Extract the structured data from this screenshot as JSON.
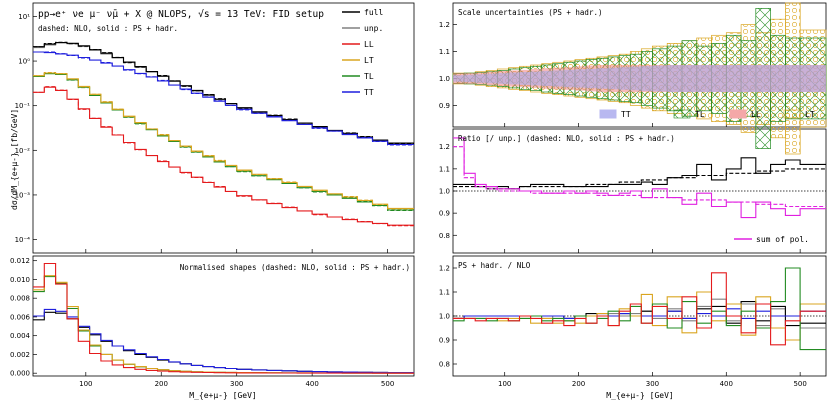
{
  "figure_title": "pp→e⁺ νe μ⁻ ν̄μ + X @ NLOPS, √s = 13 TeV: FID setup",
  "colors": {
    "full": "#000000",
    "unp": "#808080",
    "LL": "#e41a1c",
    "LT": "#daa520",
    "TL": "#228b22",
    "TT": "#1f1fdd",
    "sum": "#e020e0"
  },
  "chart_data": [
    {
      "id": "main",
      "type": "line",
      "note": "dashed: NLO, solid : PS + hadr.",
      "ylabel": "dσ/dM_{e+μ-}  [fb/GeV]",
      "yscale": "log",
      "ylim": [
        5e-05,
        20
      ],
      "xlim": [
        30,
        535
      ],
      "yticks": [
        "10¹",
        "10⁰",
        "10⁻¹",
        "10⁻²",
        "10⁻³",
        "10⁻⁴"
      ],
      "legend": [
        "full",
        "unp.",
        "LL",
        "LT",
        "TL",
        "TT"
      ]
    },
    {
      "id": "shapes",
      "type": "line",
      "title": "Normalised shapes (dashed: NLO, solid : PS + hadr.)",
      "ylim": [
        -0.0003,
        0.0125
      ],
      "xlim": [
        30,
        535
      ],
      "yticks": [
        "0.000",
        "0.002",
        "0.004",
        "0.006",
        "0.008",
        "0.010",
        "0.012"
      ],
      "xticks": [
        "100",
        "200",
        "300",
        "400",
        "500"
      ],
      "xlabel": "M_{e+μ-}  [GeV]"
    },
    {
      "id": "scale",
      "type": "area",
      "title": "Scale uncertainties (PS + hadr.)",
      "ylim": [
        0.82,
        1.28
      ],
      "xlim": [
        30,
        535
      ],
      "yticks": [
        "0.9",
        "1.0",
        "1.1",
        "1.2"
      ],
      "legend": [
        "TT",
        "TL",
        "LL",
        "LT"
      ]
    },
    {
      "id": "ratio",
      "type": "line",
      "title": "Ratio [/ unp.] (dashed: NLO, solid : PS + hadr.)",
      "ylim": [
        0.72,
        1.28
      ],
      "xlim": [
        30,
        535
      ],
      "yticks": [
        "0.8",
        "0.9",
        "1.0",
        "1.1",
        "1.2"
      ],
      "legend": [
        "sum of pol."
      ]
    },
    {
      "id": "pshadr",
      "type": "line",
      "title": "PS + hadr. / NLO",
      "ylim": [
        0.75,
        1.25
      ],
      "xlim": [
        30,
        535
      ],
      "yticks": [
        "0.8",
        "0.9",
        "1.0",
        "1.1",
        "1.2"
      ],
      "xticks": [
        "100",
        "200",
        "300",
        "400",
        "500"
      ],
      "xlabel": "M_{e+μ-}  [GeV]"
    }
  ],
  "series": {
    "full": {
      "lo": [
        2.1,
        2.4,
        2.6,
        2.5,
        2.2,
        1.8,
        1.5,
        1.2,
        0.95,
        0.75,
        0.58,
        0.46,
        0.36,
        0.28,
        0.22,
        0.175,
        0.14,
        0.112,
        0.09,
        0.073,
        0.06,
        0.049,
        0.041,
        0.034,
        0.028,
        0.024,
        0.02,
        0.017,
        0.0145
      ],
      "exp": -1
    },
    "unp": {
      "lo": [
        2.0,
        2.3,
        2.55,
        2.45,
        2.15,
        1.75,
        1.45,
        1.17,
        0.93,
        0.73,
        0.57,
        0.45,
        0.35,
        0.275,
        0.215,
        0.17,
        0.137,
        0.11,
        0.088,
        0.071,
        0.058,
        0.048,
        0.04,
        0.033,
        0.0275,
        0.023,
        0.0195,
        0.0165,
        0.014
      ]
    },
    "TT": {
      "lo": [
        1.6,
        1.55,
        1.45,
        1.35,
        1.2,
        1.05,
        0.9,
        0.77,
        0.64,
        0.53,
        0.44,
        0.36,
        0.29,
        0.235,
        0.19,
        0.155,
        0.126,
        0.102,
        0.083,
        0.068,
        0.056,
        0.046,
        0.038,
        0.032,
        0.027,
        0.0225,
        0.019,
        0.016,
        0.0135
      ]
    },
    "TL": {
      "lo": [
        0.45,
        0.52,
        0.5,
        0.38,
        0.26,
        0.17,
        0.115,
        0.08,
        0.056,
        0.04,
        0.029,
        0.021,
        0.0158,
        0.012,
        0.0092,
        0.0071,
        0.0055,
        0.0043,
        0.0034,
        0.0027,
        0.0022,
        0.0018,
        0.00145,
        0.0012,
        0.001,
        0.00084,
        0.0007,
        0.00058,
        0.00046
      ]
    },
    "LT": {
      "lo": [
        0.47,
        0.54,
        0.52,
        0.4,
        0.27,
        0.18,
        0.12,
        0.083,
        0.058,
        0.042,
        0.03,
        0.022,
        0.0165,
        0.0125,
        0.0096,
        0.0075,
        0.0058,
        0.0046,
        0.0036,
        0.0029,
        0.0023,
        0.0019,
        0.00155,
        0.00128,
        0.00106,
        0.0009,
        0.00075,
        0.00062,
        0.0005
      ]
    },
    "LL": {
      "lo": [
        0.2,
        0.26,
        0.22,
        0.14,
        0.085,
        0.052,
        0.033,
        0.022,
        0.015,
        0.0105,
        0.0076,
        0.0056,
        0.0042,
        0.0032,
        0.0025,
        0.0019,
        0.0015,
        0.0012,
        0.00096,
        0.00078,
        0.00064,
        0.00052,
        0.00044,
        0.00037,
        0.00032,
        0.00028,
        0.00025,
        0.00023,
        0.00021
      ]
    },
    "shapes_TT": [
      0.0061,
      0.0068,
      0.0066,
      0.006,
      0.005,
      0.0042,
      0.0035,
      0.0029,
      0.0025,
      0.0021,
      0.00175,
      0.00146,
      0.0012,
      0.001,
      0.00083,
      0.0007,
      0.0006,
      0.0005,
      0.00042,
      0.00035,
      0.0003,
      0.00025,
      0.0002,
      0.00017,
      0.00014,
      0.00012,
      0.0001,
      8e-05,
      6e-05
    ],
    "shapes_full": [
      0.0057,
      0.0065,
      0.0064,
      0.0058,
      0.0049,
      0.0041,
      0.0034,
      0.0029,
      0.0024,
      0.002,
      0.0017,
      0.0014,
      0.00118,
      0.001,
      0.00083,
      0.0007,
      0.0006,
      0.0005,
      0.00042,
      0.00035,
      0.0003,
      0.00025,
      0.0002,
      0.00017,
      0.00014,
      0.00012,
      0.0001,
      8e-05,
      6e-05
    ],
    "shapes_TL": [
      0.0087,
      0.0103,
      0.0096,
      0.0069,
      0.0045,
      0.0029,
      0.002,
      0.0014,
      0.00095,
      0.00068,
      0.0005,
      0.00037,
      0.00027,
      0.0002,
      0.00015,
      0.00012,
      0.0001,
      8e-05,
      6e-05,
      5e-05,
      4e-05,
      3e-05,
      3e-05,
      2e-05,
      2e-05,
      1e-05,
      1e-05,
      1e-05,
      1e-05
    ],
    "shapes_LT": [
      0.0089,
      0.0104,
      0.0097,
      0.0071,
      0.0046,
      0.003,
      0.002,
      0.0014,
      0.00096,
      0.0007,
      0.0005,
      0.00037,
      0.00027,
      0.0002,
      0.00015,
      0.00012,
      0.0001,
      8e-05,
      6e-05,
      5e-05,
      4e-05,
      3e-05,
      3e-05,
      2e-05,
      2e-05,
      1e-05,
      1e-05,
      1e-05,
      1e-05
    ],
    "shapes_LL": [
      0.0092,
      0.0117,
      0.0095,
      0.0058,
      0.0034,
      0.0021,
      0.0013,
      0.00088,
      0.0006,
      0.00042,
      0.0003,
      0.00022,
      0.00016,
      0.00012,
      9e-05,
      7e-05,
      5e-05,
      4e-05,
      3e-05,
      3e-05,
      2e-05,
      2e-05,
      1e-05,
      1e-05,
      1e-05,
      1e-05,
      1e-05,
      0.0,
      0.0
    ],
    "ratio_full": [
      1.03,
      1.03,
      1.02,
      1.02,
      1.02,
      1.01,
      1.02,
      1.03,
      1.03,
      1.03,
      1.02,
      1.02,
      1.02,
      1.02,
      1.03,
      1.03,
      1.03,
      1.04,
      1.03,
      1.06,
      1.07,
      1.12,
      1.05,
      1.1,
      1.15,
      1.08,
      1.12,
      1.14,
      1.12
    ],
    "ratio_full_nlo": [
      1.02,
      1.02,
      1.02,
      1.01,
      1.01,
      1.01,
      1.02,
      1.02,
      1.02,
      1.02,
      1.02,
      1.02,
      1.03,
      1.03,
      1.03,
      1.04,
      1.04,
      1.05,
      1.05,
      1.06,
      1.06,
      1.07,
      1.07,
      1.08,
      1.08,
      1.09,
      1.09,
      1.1,
      1.1
    ],
    "ratio_sum": [
      1.24,
      1.08,
      1.03,
      1.02,
      1.01,
      1.01,
      1.0,
      1.0,
      0.99,
      0.99,
      1.0,
      0.99,
      1.0,
      0.99,
      0.98,
      0.99,
      1.0,
      0.97,
      1.01,
      0.97,
      0.94,
      0.99,
      0.93,
      0.95,
      0.88,
      0.95,
      0.92,
      0.89,
      0.92
    ],
    "ratio_sum_nlo": [
      1.2,
      1.06,
      1.02,
      1.01,
      1.0,
      1.0,
      1.0,
      0.99,
      0.99,
      0.99,
      0.99,
      0.99,
      0.99,
      0.98,
      0.98,
      0.98,
      0.98,
      0.97,
      0.97,
      0.97,
      0.96,
      0.96,
      0.96,
      0.95,
      0.95,
      0.94,
      0.94,
      0.93,
      0.93
    ],
    "psh_LL": [
      0.99,
      0.99,
      0.98,
      0.99,
      0.99,
      0.98,
      1.0,
      0.99,
      0.97,
      0.98,
      0.96,
      0.99,
      0.97,
      1.0,
      0.96,
      1.02,
      1.05,
      0.97,
      1.04,
      0.99,
      1.08,
      0.95,
      1.18,
      1.0,
      0.93,
      1.05,
      0.88,
      0.98,
      1.02
    ],
    "psh_LT": [
      0.99,
      0.99,
      0.99,
      0.99,
      0.98,
      0.99,
      0.99,
      0.97,
      0.99,
      0.97,
      0.98,
      0.97,
      1.0,
      1.01,
      0.96,
      1.03,
      1.0,
      1.09,
      0.96,
      1.08,
      0.93,
      1.1,
      0.98,
      1.05,
      0.92,
      1.08,
      0.95,
      0.9,
      1.05
    ],
    "psh_TL": [
      0.98,
      0.99,
      0.99,
      0.98,
      0.99,
      0.98,
      0.99,
      1.0,
      0.98,
      0.99,
      0.98,
      1.0,
      0.97,
      0.99,
      1.02,
      0.98,
      1.04,
      0.97,
      1.05,
      0.95,
      1.06,
      0.97,
      1.02,
      0.96,
      1.02,
      0.95,
      1.06,
      1.2,
      0.86
    ],
    "psh_TT": [
      0.99,
      1.0,
      1.0,
      1.0,
      1.0,
      1.0,
      1.0,
      1.0,
      1.0,
      1.0,
      0.99,
      1.0,
      1.0,
      1.01,
      1.0,
      1.01,
      1.0,
      1.0,
      1.0,
      1.02,
      0.99,
      1.01,
      1.0,
      1.03,
      0.99,
      1.02,
      1.0,
      1.0,
      1.02
    ],
    "psh_unp": [
      0.99,
      1.0,
      1.0,
      1.0,
      1.0,
      1.0,
      1.0,
      1.0,
      0.99,
      1.0,
      0.99,
      1.0,
      1.0,
      1.0,
      1.01,
      1.0,
      1.01,
      1.02,
      0.99,
      1.03,
      0.98,
      1.04,
      1.07,
      0.98,
      1.05,
      0.96,
      1.03,
      1.0,
      0.95
    ],
    "psh_full": [
      0.99,
      1.0,
      1.0,
      1.0,
      1.0,
      1.0,
      1.0,
      1.0,
      1.0,
      1.0,
      0.99,
      1.0,
      1.01,
      1.0,
      1.0,
      1.01,
      1.0,
      1.02,
      1.0,
      1.02,
      0.99,
      1.03,
      1.04,
      0.97,
      1.06,
      0.98,
      1.04,
      0.96,
      0.97
    ],
    "scale_LT": [
      0.02,
      0.02,
      0.025,
      0.03,
      0.035,
      0.04,
      0.045,
      0.05,
      0.055,
      0.06,
      0.065,
      0.07,
      0.075,
      0.08,
      0.085,
      0.09,
      0.1,
      0.11,
      0.12,
      0.13,
      0.14,
      0.15,
      0.16,
      0.17,
      0.2,
      0.17,
      0.22,
      0.28,
      0.18
    ],
    "scale_TL": [
      0.018,
      0.02,
      0.022,
      0.025,
      0.03,
      0.035,
      0.04,
      0.045,
      0.05,
      0.055,
      0.06,
      0.065,
      0.07,
      0.075,
      0.08,
      0.085,
      0.09,
      0.1,
      0.11,
      0.12,
      0.14,
      0.12,
      0.13,
      0.16,
      0.14,
      0.26,
      0.16,
      0.15,
      0.15
    ],
    "scale_LL": [
      0.02,
      0.02,
      0.022,
      0.025,
      0.028,
      0.03,
      0.032,
      0.035,
      0.038,
      0.04,
      0.042,
      0.045,
      0.048,
      0.05,
      0.05,
      0.05,
      0.05,
      0.05,
      0.05,
      0.05,
      0.05,
      0.05,
      0.05,
      0.05,
      0.05,
      0.05,
      0.05,
      0.05,
      0.05
    ],
    "scale_TT": [
      0.012,
      0.014,
      0.016,
      0.018,
      0.02,
      0.022,
      0.024,
      0.026,
      0.028,
      0.03,
      0.032,
      0.034,
      0.036,
      0.038,
      0.04,
      0.042,
      0.044,
      0.046,
      0.048,
      0.05,
      0.05,
      0.05,
      0.05,
      0.05,
      0.05,
      0.05,
      0.05,
      0.05,
      0.05
    ]
  }
}
